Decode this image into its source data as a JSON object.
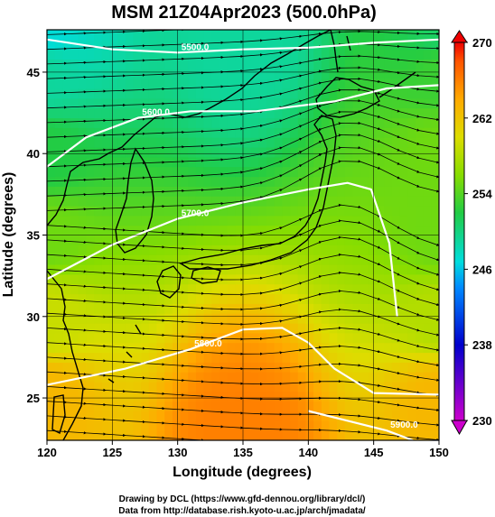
{
  "title": "MSM 21Z04Apr2023 (500.0hPa)",
  "credits": {
    "drawing": "Drawing by DCL (https://www.gfd-dennou.org/library/dcl/)",
    "data": "Data from http://database.rish.kyoto-u.ac.jp/arch/jmadata/"
  },
  "chart_data": {
    "type": "heatmap",
    "title": "MSM 21Z04Apr2023 (500.0hPa)",
    "xlabel": "Longitude (degrees)",
    "ylabel": "Latitude (degrees)",
    "xlim": [
      120,
      150
    ],
    "ylim": [
      22.4,
      47.6
    ],
    "x_ticks": [
      "120",
      "125",
      "130",
      "135",
      "140",
      "145",
      "150"
    ],
    "y_ticks": [
      "25",
      "30",
      "35",
      "40",
      "45"
    ],
    "x_tick_values": [
      120,
      125,
      130,
      135,
      140,
      145,
      150
    ],
    "y_tick_values": [
      25,
      30,
      35,
      40,
      45
    ],
    "grid": true,
    "colorbar": {
      "ticks": [
        "230",
        "238",
        "246",
        "254",
        "262",
        "270"
      ],
      "tick_values": [
        230,
        238,
        246,
        254,
        262,
        270
      ],
      "range": [
        230,
        270
      ],
      "colors": [
        "#cc00cc",
        "#0000cc",
        "#0088ff",
        "#00dddd",
        "#22cc44",
        "#88dd00",
        "#dddd00",
        "#ffaa00",
        "#ff5500",
        "#ee0000"
      ]
    },
    "field_samples": [
      {
        "lat": 47.5,
        "lon": 120,
        "value": 247
      },
      {
        "lat": 47.5,
        "lon": 135,
        "value": 249
      },
      {
        "lat": 47.5,
        "lon": 150,
        "value": 251
      },
      {
        "lat": 45,
        "lon": 120,
        "value": 249
      },
      {
        "lat": 45,
        "lon": 150,
        "value": 253
      },
      {
        "lat": 40,
        "lon": 120,
        "value": 252
      },
      {
        "lat": 40,
        "lon": 150,
        "value": 255
      },
      {
        "lat": 35,
        "lon": 120,
        "value": 255
      },
      {
        "lat": 35,
        "lon": 150,
        "value": 255
      },
      {
        "lat": 30,
        "lon": 120,
        "value": 259
      },
      {
        "lat": 30,
        "lon": 150,
        "value": 258
      },
      {
        "lat": 25,
        "lon": 120,
        "value": 263
      },
      {
        "lat": 25,
        "lon": 150,
        "value": 263
      },
      {
        "lat": 22.5,
        "lon": 135,
        "value": 266
      }
    ],
    "contours": [
      {
        "label": "5500.0",
        "points": [
          [
            120,
            47.0
          ],
          [
            125,
            46.4
          ],
          [
            130,
            46.2
          ],
          [
            135,
            46.4
          ],
          [
            140,
            46.5
          ],
          [
            145,
            46.8
          ],
          [
            150,
            47.0
          ]
        ]
      },
      {
        "label": "5600.0",
        "points": [
          [
            120,
            39.2
          ],
          [
            123,
            41.0
          ],
          [
            127,
            42.2
          ],
          [
            131,
            42.6
          ],
          [
            136,
            42.6
          ],
          [
            142,
            43.2
          ],
          [
            146,
            44.0
          ],
          [
            150,
            44.2
          ]
        ]
      },
      {
        "label": "5700.0",
        "points": [
          [
            120,
            32.3
          ],
          [
            125,
            34.4
          ],
          [
            130,
            36.0
          ],
          [
            135,
            37.0
          ],
          [
            140,
            37.8
          ],
          [
            143,
            38.2
          ],
          [
            144.8,
            37.8
          ],
          [
            146.2,
            34.5
          ],
          [
            146.8,
            30.0
          ]
        ]
      },
      {
        "label": "5800.0",
        "points": [
          [
            120,
            25.8
          ],
          [
            126,
            26.8
          ],
          [
            131,
            28.0
          ],
          [
            135,
            29.2
          ],
          [
            138,
            29.3
          ],
          [
            140,
            28.4
          ],
          [
            142,
            26.8
          ],
          [
            145,
            25.3
          ],
          [
            150,
            25.2
          ]
        ]
      },
      {
        "label": "5900.0",
        "points": [
          [
            140,
            24.2
          ],
          [
            143,
            23.6
          ],
          [
            146,
            23.0
          ],
          [
            148,
            22.4
          ]
        ]
      }
    ],
    "wind_flow": "westerly streamlines with an anticyclonic ridge centred near 143E 36N"
  }
}
